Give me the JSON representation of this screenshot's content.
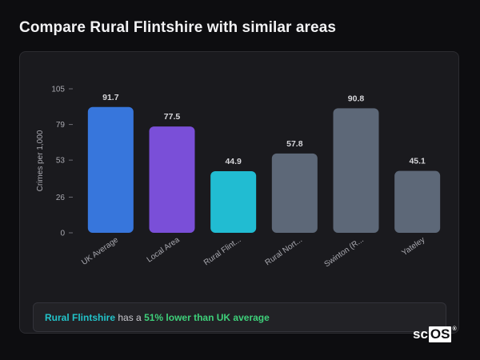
{
  "page": {
    "title": "Compare Rural Flintshire with similar areas"
  },
  "chart_data": {
    "type": "bar",
    "ylabel": "Crimes per 1,000",
    "xlabel": "",
    "ylim": [
      0,
      105
    ],
    "yticks": [
      0,
      26,
      53,
      79,
      105
    ],
    "grid": false,
    "categories": [
      "UK Average",
      "Local Area",
      "Rural Flint...",
      "Rural Nort...",
      "Swinton (R...",
      "Yateley"
    ],
    "values": [
      91.7,
      77.5,
      44.9,
      57.8,
      90.8,
      45.1
    ],
    "value_labels": [
      "91.7",
      "77.5",
      "44.9",
      "57.8",
      "90.8",
      "45.1"
    ],
    "colors": [
      "#3776dc",
      "#7a4fd8",
      "#21bcd2",
      "#5d6878",
      "#5d6878",
      "#5d6878"
    ]
  },
  "summary": {
    "area": "Rural Flintshire",
    "middle": "has a",
    "stat": "51% lower than UK average"
  },
  "brand": {
    "prefix": "sc",
    "boxed": "OS",
    "mark": "®"
  }
}
